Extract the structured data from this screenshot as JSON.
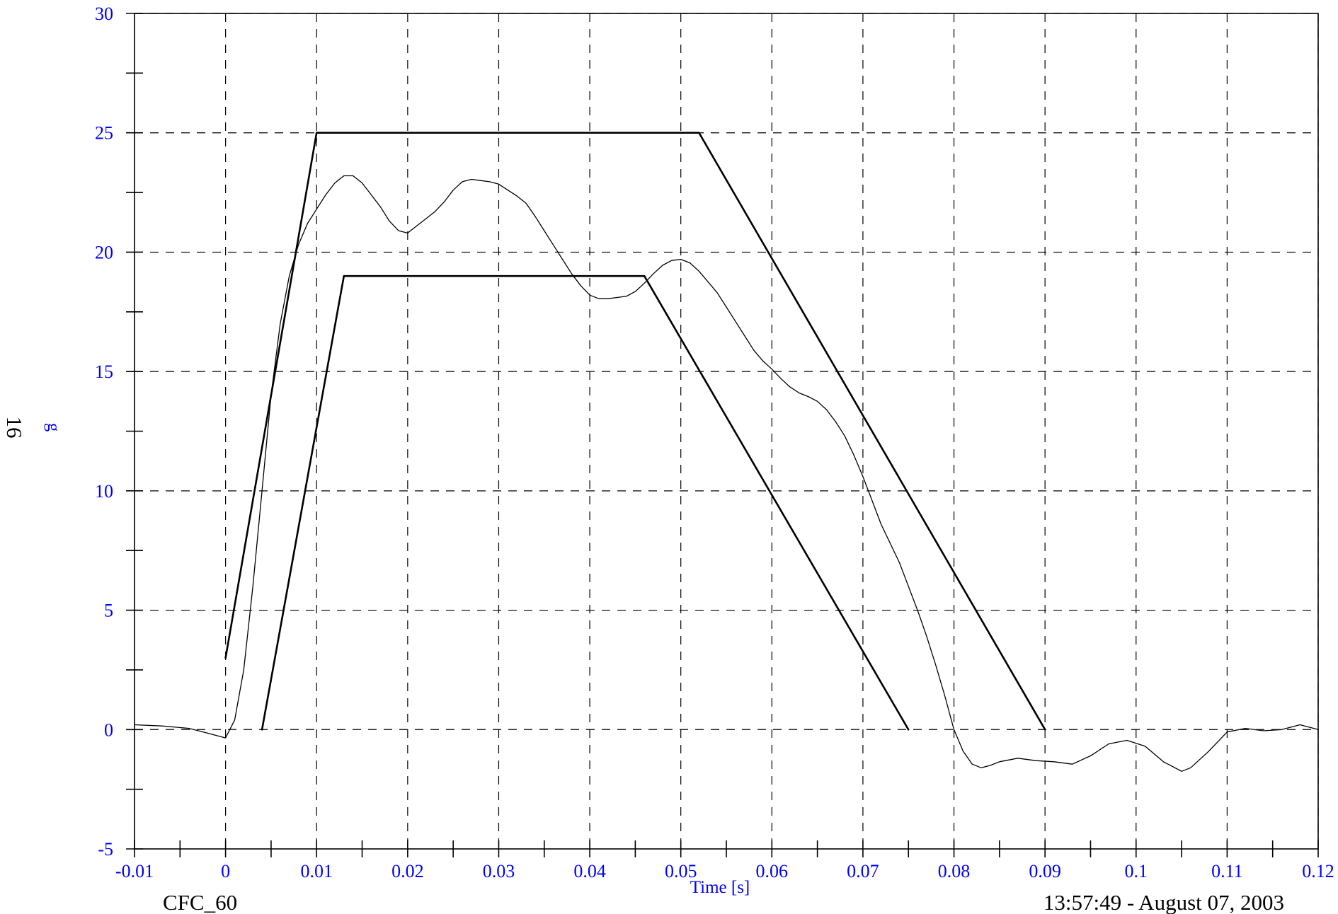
{
  "chart_data": {
    "type": "line",
    "title": "",
    "xlabel": "Time [s]",
    "ylabel": "g",
    "ylabel_secondary": "16",
    "xlim": [
      -0.01,
      0.12
    ],
    "ylim": [
      -5,
      30
    ],
    "x_ticks": [
      -0.01,
      0,
      0.01,
      0.02,
      0.03,
      0.04,
      0.05,
      0.06,
      0.07,
      0.08,
      0.09,
      0.1,
      0.11,
      0.12
    ],
    "x_tick_labels": [
      "-0.01",
      "0",
      "0.01",
      "0.02",
      "0.03",
      "0.04",
      "0.05",
      "0.06",
      "0.07",
      "0.08",
      "0.09",
      "0.1",
      "0.11",
      "0.12"
    ],
    "y_ticks": [
      -5,
      0,
      5,
      10,
      15,
      20,
      25,
      30
    ],
    "y_tick_labels": [
      "-5",
      "0",
      "5",
      "10",
      "15",
      "20",
      "25",
      "30"
    ],
    "x_minor_step": 0.005,
    "y_minor_step": 2.5,
    "grid": true,
    "grid_style": "dashed",
    "series": [
      {
        "style": "thin",
        "x": [
          -0.01,
          -0.007,
          -0.004,
          -0.002,
          0,
          0.001,
          0.002,
          0.003,
          0.004,
          0.005,
          0.006,
          0.007,
          0.008,
          0.009,
          0.01,
          0.011,
          0.012,
          0.013,
          0.014,
          0.015,
          0.016,
          0.017,
          0.018,
          0.019,
          0.02,
          0.021,
          0.022,
          0.023,
          0.024,
          0.025,
          0.026,
          0.027,
          0.028,
          0.029,
          0.03,
          0.031,
          0.032,
          0.033,
          0.034,
          0.035,
          0.036,
          0.037,
          0.038,
          0.039,
          0.04,
          0.041,
          0.042,
          0.043,
          0.044,
          0.045,
          0.046,
          0.047,
          0.048,
          0.049,
          0.05,
          0.051,
          0.052,
          0.053,
          0.054,
          0.055,
          0.056,
          0.057,
          0.058,
          0.059,
          0.06,
          0.061,
          0.062,
          0.063,
          0.064,
          0.065,
          0.066,
          0.067,
          0.068,
          0.069,
          0.07,
          0.071,
          0.072,
          0.073,
          0.074,
          0.075,
          0.076,
          0.077,
          0.078,
          0.079,
          0.08,
          0.081,
          0.082,
          0.083,
          0.084,
          0.085,
          0.087,
          0.089,
          0.091,
          0.093,
          0.095,
          0.097,
          0.099,
          0.101,
          0.103,
          0.105,
          0.106,
          0.108,
          0.11,
          0.112,
          0.114,
          0.116,
          0.118,
          0.12
        ],
        "y": [
          0.2,
          0.15,
          0.05,
          -0.15,
          -0.35,
          0.4,
          2.5,
          6.0,
          10.0,
          14.0,
          17.0,
          19.0,
          20.3,
          21.2,
          21.8,
          22.4,
          22.9,
          23.2,
          23.2,
          22.9,
          22.4,
          21.9,
          21.3,
          20.9,
          20.8,
          21.1,
          21.4,
          21.7,
          22.1,
          22.6,
          22.95,
          23.05,
          23.0,
          22.95,
          22.85,
          22.6,
          22.35,
          22.05,
          21.5,
          20.9,
          20.3,
          19.7,
          19.1,
          18.6,
          18.2,
          18.05,
          18.05,
          18.1,
          18.15,
          18.35,
          18.7,
          19.1,
          19.45,
          19.65,
          19.7,
          19.55,
          19.2,
          18.75,
          18.3,
          17.7,
          17.1,
          16.5,
          15.9,
          15.45,
          15.1,
          14.7,
          14.35,
          14.1,
          13.95,
          13.75,
          13.4,
          12.9,
          12.3,
          11.5,
          10.6,
          9.6,
          8.6,
          7.8,
          7.0,
          6.0,
          5.0,
          3.9,
          2.7,
          1.4,
          0.0,
          -0.9,
          -1.45,
          -1.6,
          -1.5,
          -1.35,
          -1.2,
          -1.3,
          -1.35,
          -1.45,
          -1.1,
          -0.6,
          -0.45,
          -0.7,
          -1.35,
          -1.75,
          -1.6,
          -0.9,
          -0.1,
          0.05,
          -0.05,
          0.0,
          0.2,
          0.0
        ]
      },
      {
        "style": "thick",
        "x": [
          0,
          0.01,
          0.052,
          0.09
        ],
        "y": [
          3,
          25,
          25,
          0
        ]
      },
      {
        "style": "thick",
        "x": [
          0.004,
          0.013,
          0.046,
          0.075
        ],
        "y": [
          0,
          19,
          19,
          0
        ]
      }
    ],
    "footer_left": "CFC_60",
    "footer_right": "13:57:49 - August 07, 2003"
  },
  "colors": {
    "tick_label": "#0000ff",
    "axis_title": "#0000ff",
    "axis_line": "#000000",
    "grid": "#000000",
    "series": "#000000",
    "footer": "#000000"
  }
}
